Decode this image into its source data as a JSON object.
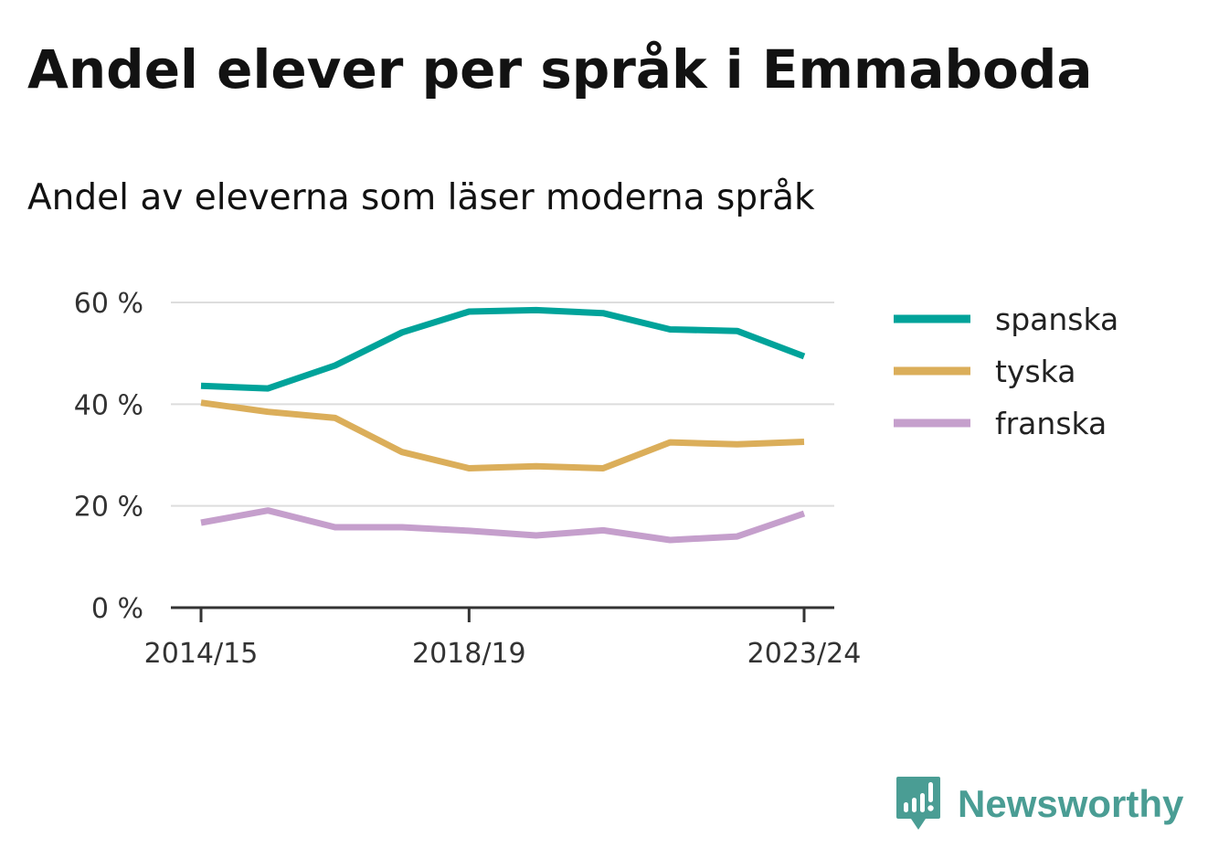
{
  "title": "Andel elever per språk i Emmaboda",
  "subtitle": "Andel av eleverna som läser moderna språk",
  "brand": {
    "name": "Newsworthy",
    "color": "#4a9d94",
    "icon": "newsworthy-logo-icon"
  },
  "chart_data": {
    "type": "line",
    "x": [
      "2014/15",
      "2015/16",
      "2016/17",
      "2017/18",
      "2018/19",
      "2019/20",
      "2020/21",
      "2021/22",
      "2022/23",
      "2023/24"
    ],
    "x_tick_labels": [
      "2014/15",
      "2018/19",
      "2023/24"
    ],
    "y_ticks": [
      0,
      20,
      40,
      60
    ],
    "y_tick_labels": [
      "0 %",
      "20 %",
      "40 %",
      "60 %"
    ],
    "ylim": [
      0,
      60
    ],
    "grid": true,
    "legend_position": "right",
    "series": [
      {
        "name": "spanska",
        "color": "#00a39a",
        "values": [
          43.6,
          43.1,
          47.6,
          54.1,
          58.2,
          58.5,
          57.9,
          54.7,
          54.4,
          49.4
        ]
      },
      {
        "name": "tyska",
        "color": "#dbae5a",
        "values": [
          40.3,
          38.5,
          37.3,
          30.6,
          27.4,
          27.8,
          27.4,
          32.5,
          32.1,
          32.6
        ]
      },
      {
        "name": "franska",
        "color": "#c59fcc",
        "values": [
          16.7,
          19.1,
          15.8,
          15.8,
          15.1,
          14.2,
          15.2,
          13.3,
          14.0,
          18.5
        ]
      }
    ]
  }
}
